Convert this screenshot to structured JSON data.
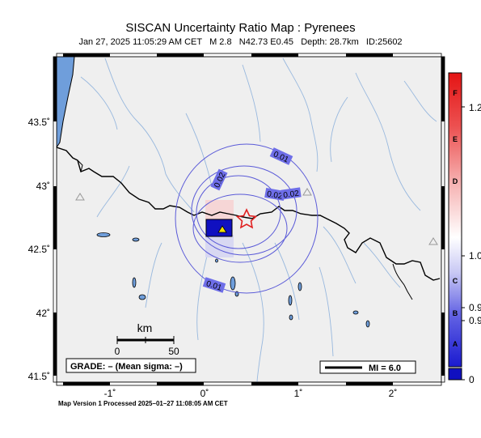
{
  "header": {
    "title": "SISCAN Uncertainty Ratio Map : Pyrenees",
    "subtitle": "Jan 27, 2025 11:05:29 AM CET   M 2.8   N42.73 E0.45   Depth: 28.7km   ID:25602"
  },
  "map": {
    "lat_ticks": [
      "43.5˚",
      "43˚",
      "42.5˚",
      "42˚",
      "41.5˚"
    ],
    "lon_ticks": [
      "-1˚",
      "0˚",
      "1˚",
      "2˚"
    ],
    "contour_labels": [
      "0.01",
      "0.02",
      "0.02",
      "0.02",
      "0.01"
    ],
    "epicenter": {
      "lat": 42.73,
      "lon": 0.45
    },
    "station_marker": "triangle-icon",
    "scale_bar": {
      "unit": "km",
      "ticks": [
        "0",
        "50"
      ]
    },
    "grade_box": "GRADE: – (Mean sigma: –)",
    "mi_legend": "MI = 6.0",
    "colors": {
      "land": "#efefef",
      "sea": "#6f9edb",
      "contour": "#5a5ad8",
      "label_bg": "#6e6ee8",
      "epicenter": "#e02020",
      "station": "#1010c0"
    }
  },
  "colorbar": {
    "letters": [
      "F",
      "E",
      "D",
      "C",
      "B",
      "A"
    ],
    "values": [
      "1.2",
      "1.0",
      "0.9",
      "0.9",
      "0"
    ]
  },
  "footer": {
    "processed": "Map Version 1 Processed 2025–01–27 11:08:05 AM CET"
  }
}
